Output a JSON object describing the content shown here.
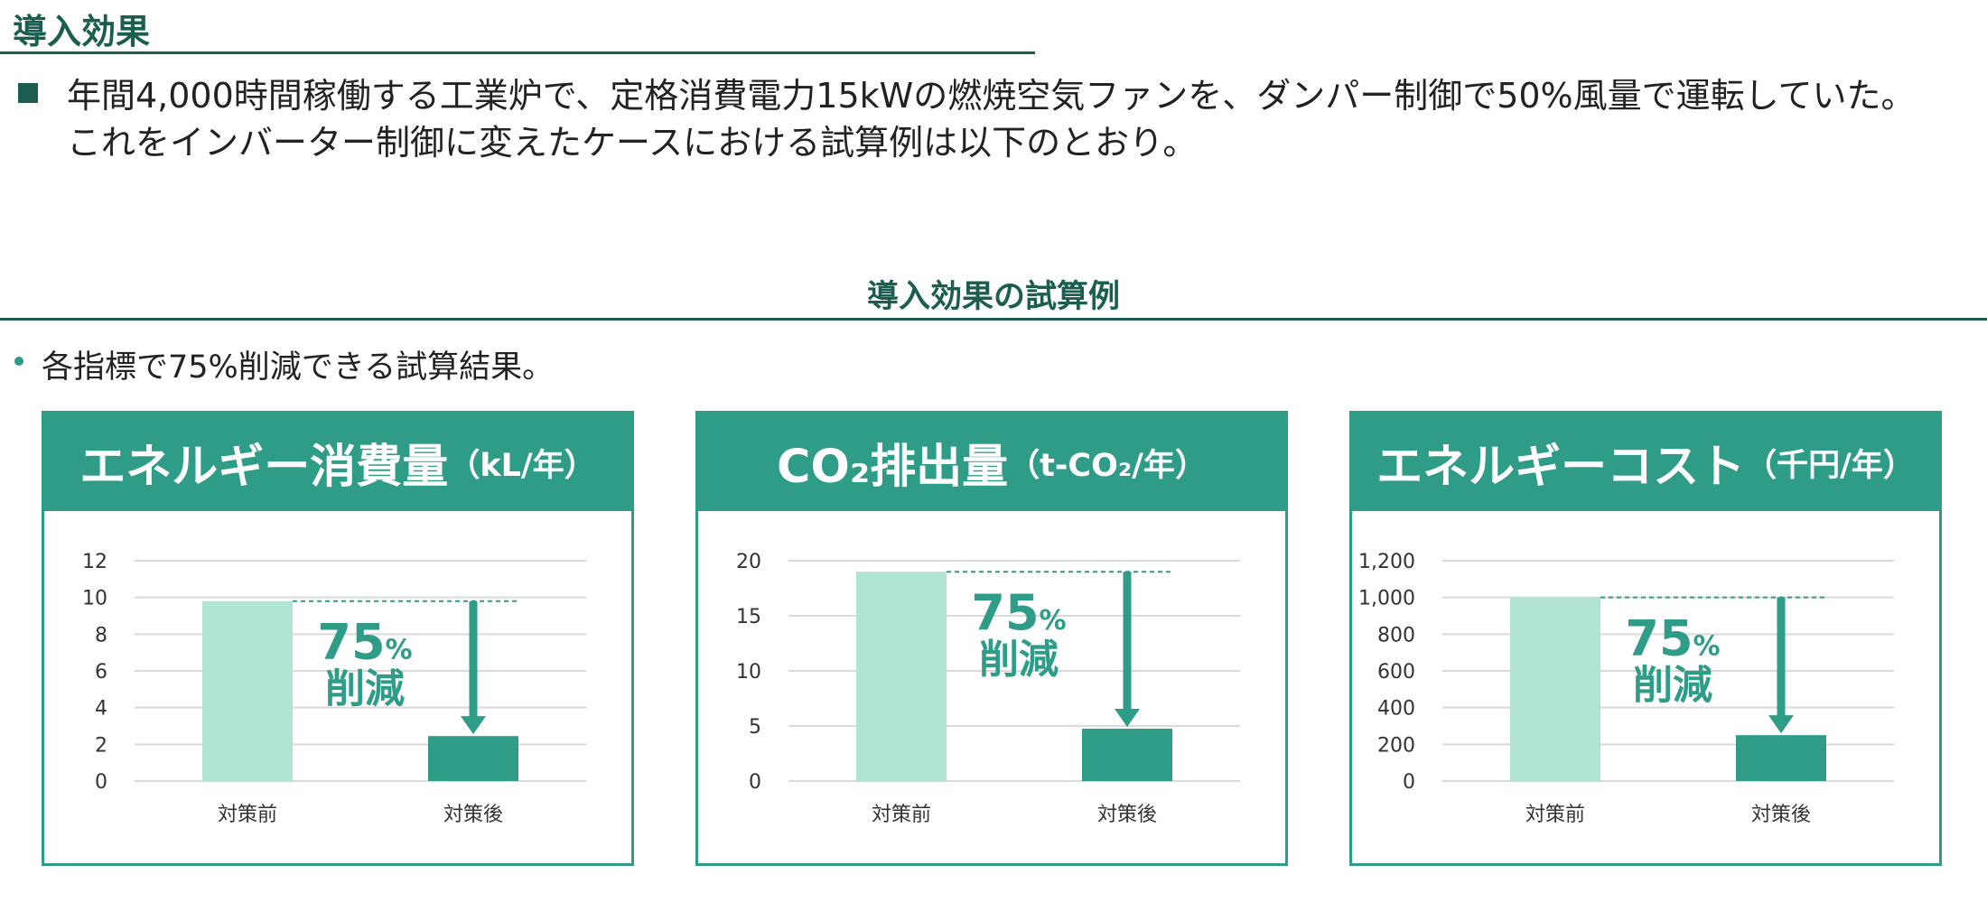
{
  "header": {
    "title": "導入効果",
    "lead_line1": "年間4,000時間稼働する工業炉で、定格消費電力15kWの燃焼空気ファンを、ダンパー制御で50%風量で運転していた。",
    "lead_line2": "これをインバーター制御に変えたケースにおける試算例は以下のとおり。"
  },
  "section": {
    "title": "導入効果の試算例",
    "note": "各指標で75%削減できる試算結果。"
  },
  "colors": {
    "accent": "#2e9c86",
    "dark": "#1b5e4f",
    "bar_before": "#b2e4d6",
    "bar_after": "#2e9c86"
  },
  "chart_data": [
    {
      "type": "bar",
      "title_main": "エネルギー消費量",
      "title_unit": "（kL/年）",
      "categories": [
        "対策前",
        "対策後"
      ],
      "values": [
        9.8,
        2.45
      ],
      "ylim": [
        0,
        12
      ],
      "yticks": [
        "0",
        "2",
        "4",
        "6",
        "8",
        "10",
        "12"
      ],
      "ytick_values": [
        0,
        2,
        4,
        6,
        8,
        10,
        12
      ],
      "annotation_pct": "75",
      "annotation_pct_sign": "%",
      "annotation_text": "削減",
      "grid": true
    },
    {
      "type": "bar",
      "title_main": "CO₂排出量",
      "title_unit": "（t-CO₂/年）",
      "categories": [
        "対策前",
        "対策後"
      ],
      "values": [
        19,
        4.75
      ],
      "ylim": [
        0,
        20
      ],
      "yticks": [
        "0",
        "5",
        "10",
        "15",
        "20"
      ],
      "ytick_values": [
        0,
        5,
        10,
        15,
        20
      ],
      "annotation_pct": "75",
      "annotation_pct_sign": "%",
      "annotation_text": "削減",
      "grid": true
    },
    {
      "type": "bar",
      "title_main": "エネルギーコスト",
      "title_unit": "（千円/年）",
      "categories": [
        "対策前",
        "対策後"
      ],
      "values": [
        1000,
        250
      ],
      "ylim": [
        0,
        1200
      ],
      "yticks": [
        "0",
        "200",
        "400",
        "600",
        "800",
        "1,000",
        "1,200"
      ],
      "ytick_values": [
        0,
        200,
        400,
        600,
        800,
        1000,
        1200
      ],
      "annotation_pct": "75",
      "annotation_pct_sign": "%",
      "annotation_text": "削減",
      "grid": true
    }
  ]
}
